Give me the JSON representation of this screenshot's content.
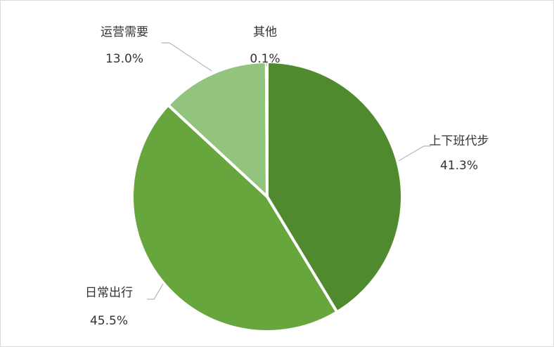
{
  "chart_data": {
    "type": "pie",
    "slices": [
      {
        "label": "上下班代步",
        "value": 41.3,
        "display": "41.3%",
        "color": "#4f8a2e"
      },
      {
        "label": "日常出行",
        "value": 45.5,
        "display": "45.5%",
        "color": "#67a53d"
      },
      {
        "label": "运营需要",
        "value": 13.0,
        "display": "13.0%",
        "color": "#93c47d"
      },
      {
        "label": "其他",
        "value": 0.1,
        "display": "0.1%",
        "color": "#c5e0b4"
      }
    ],
    "start_angle_deg": 0,
    "direction": "clockwise",
    "legend": "none",
    "data_labels": "outside-with-leader-lines"
  }
}
